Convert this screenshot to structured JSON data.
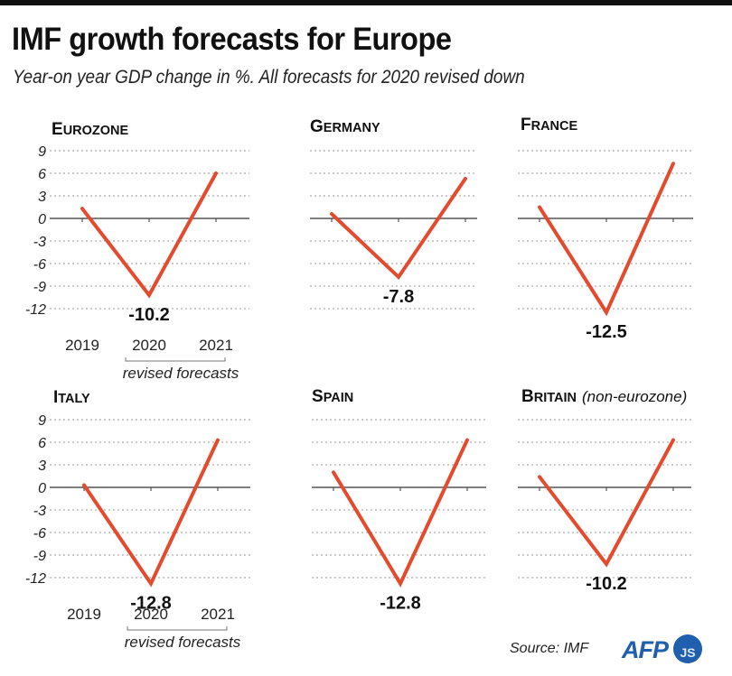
{
  "header": {
    "title": "IMF growth forecasts for Europe",
    "subtitle": "Year-on year GDP change in %. All forecasts for 2020 revised down"
  },
  "footer": {
    "source": "Source: IMF",
    "logo_text": "AFP",
    "logo_badge": "JS"
  },
  "colors": {
    "series": "#e34a2e",
    "logo": "#1f5fae"
  },
  "chart_data": [
    {
      "type": "line",
      "title": "Eurozone",
      "x": [
        "2019",
        "2020",
        "2021"
      ],
      "values": [
        1.3,
        -10.2,
        6.0
      ],
      "value_label": "-10.2",
      "yticks": [
        "9",
        "6",
        "3",
        "0",
        "-3",
        "-6",
        "-9",
        "-12"
      ],
      "ylim": [
        -12,
        9
      ],
      "show_y_axis_labels": true,
      "show_x_axis_labels": true,
      "bracket_label": "revised forecasts",
      "grid": true
    },
    {
      "type": "line",
      "title": "Germany",
      "x": [
        "2019",
        "2020",
        "2021"
      ],
      "values": [
        0.6,
        -7.8,
        5.3
      ],
      "value_label": "-7.8",
      "ylim": [
        -12,
        9
      ],
      "show_y_axis_labels": false,
      "show_x_axis_labels": false,
      "grid": true
    },
    {
      "type": "line",
      "title": "France",
      "x": [
        "2019",
        "2020",
        "2021"
      ],
      "values": [
        1.5,
        -12.5,
        7.3
      ],
      "value_label": "-12.5",
      "ylim": [
        -12,
        9
      ],
      "show_y_axis_labels": false,
      "show_x_axis_labels": false,
      "grid": true
    },
    {
      "type": "line",
      "title": "Italy",
      "x": [
        "2019",
        "2020",
        "2021"
      ],
      "values": [
        0.3,
        -12.8,
        6.3
      ],
      "value_label": "-12.8",
      "yticks": [
        "9",
        "6",
        "3",
        "0",
        "-3",
        "-6",
        "-9",
        "-12"
      ],
      "ylim": [
        -12,
        9
      ],
      "show_y_axis_labels": true,
      "show_x_axis_labels": true,
      "bracket_label": "revised forecasts",
      "grid": true
    },
    {
      "type": "line",
      "title": "Spain",
      "x": [
        "2019",
        "2020",
        "2021"
      ],
      "values": [
        2.0,
        -12.8,
        6.3
      ],
      "value_label": "-12.8",
      "ylim": [
        -12,
        9
      ],
      "show_y_axis_labels": false,
      "show_x_axis_labels": false,
      "grid": true
    },
    {
      "type": "line",
      "title": "Britain",
      "title_note": "(non-eurozone)",
      "x": [
        "2019",
        "2020",
        "2021"
      ],
      "values": [
        1.4,
        -10.2,
        6.3
      ],
      "value_label": "-10.2",
      "ylim": [
        -12,
        9
      ],
      "show_y_axis_labels": false,
      "show_x_axis_labels": false,
      "grid": true
    }
  ]
}
